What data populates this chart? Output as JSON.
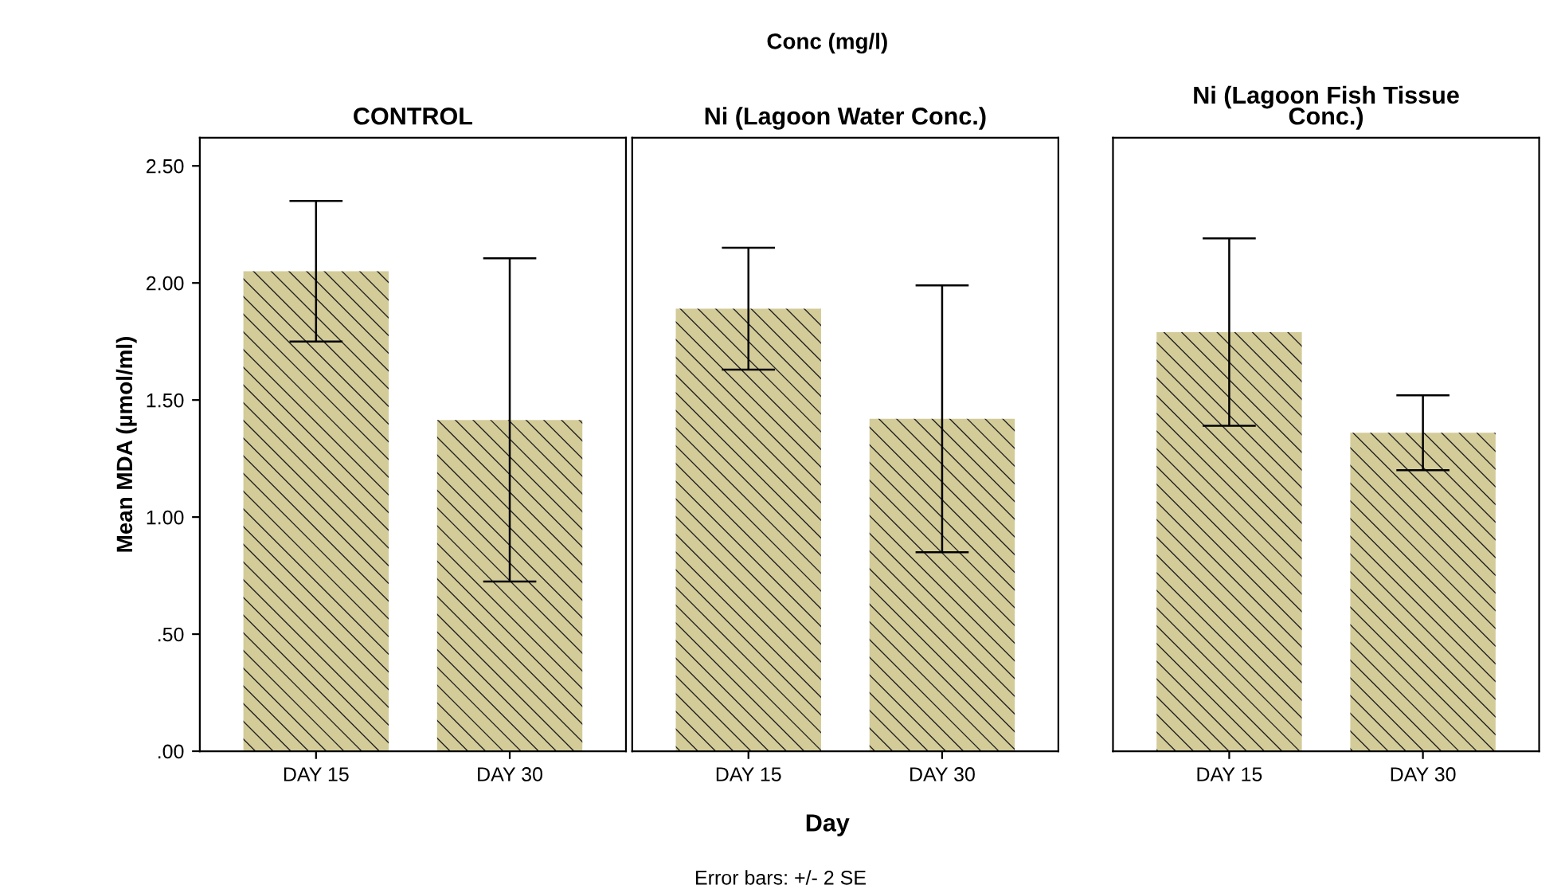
{
  "chart_data": [
    {
      "type": "bar",
      "title": "CONTROL",
      "ylabel": "Mean MDA (µmol/ml)",
      "categories": [
        "DAY 15",
        "DAY 30"
      ],
      "values": [
        2.05,
        1.415
      ],
      "errors": [
        0.3,
        0.69
      ],
      "color": "#d3cb98",
      "ylim": [
        0,
        2.62
      ],
      "yticks": [
        {
          "value": 0,
          "label": ".00"
        },
        {
          "value": 0.5,
          "label": ".50"
        },
        {
          "value": 1,
          "label": "1.00"
        },
        {
          "value": 1.5,
          "label": "1.50"
        },
        {
          "value": 2,
          "label": "2.00"
        },
        {
          "value": 2.5,
          "label": "2.50"
        }
      ],
      "grid": false
    },
    {
      "type": "bar",
      "title": "Ni (Lagoon Water Conc.)",
      "xlabel": "Day",
      "annotations": [
        "Conc (mg/l)",
        "Error bars: +/- 2 SE"
      ],
      "categories": [
        "DAY 15",
        "DAY 30"
      ],
      "values": [
        1.89,
        1.42
      ],
      "errors": [
        0.26,
        0.57
      ],
      "color": "#d3cb98",
      "ylim": [
        0,
        2.62
      ],
      "tick_labels": "x",
      "grid": false
    },
    {
      "type": "bar",
      "title": "Ni (Lagoon Fish Tissue\nConc.)",
      "categories": [
        "DAY 15",
        "DAY 30"
      ],
      "values": [
        1.79,
        1.36
      ],
      "errors": [
        0.4,
        0.16
      ],
      "color": "#d3cb98",
      "ylim": [
        0,
        2.62
      ],
      "tick_labels": "x",
      "grid": false
    }
  ]
}
